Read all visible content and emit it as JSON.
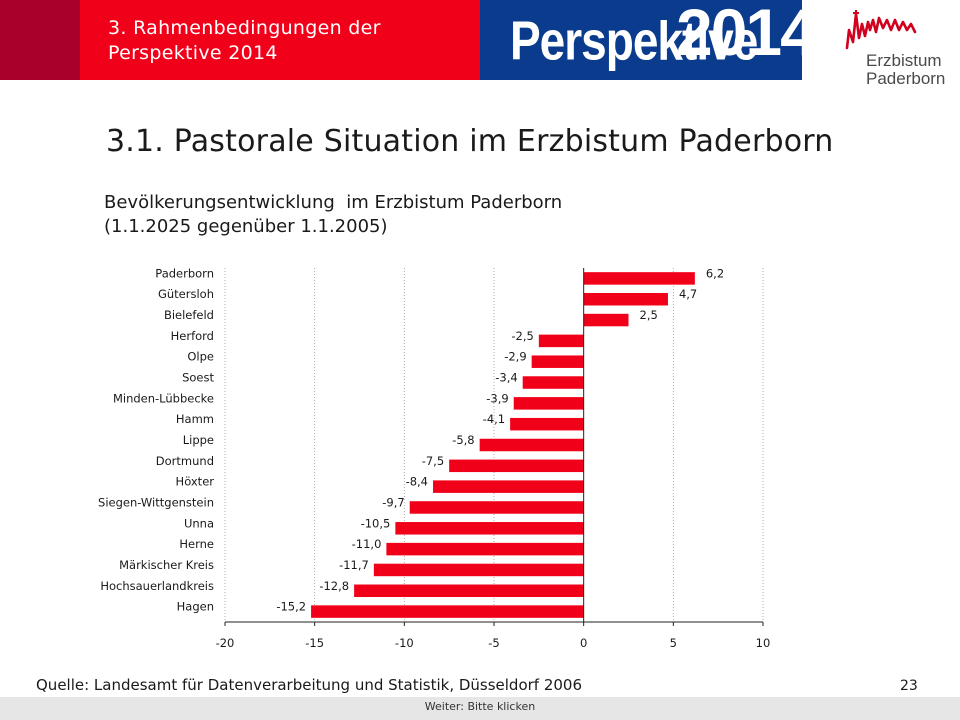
{
  "header": {
    "section_line1": "3. Rahmenbedingungen der",
    "section_line2": "Perspektive 2014",
    "logo_word": "Perspektive",
    "logo_year": "2014",
    "org_line1": "Erzbistum",
    "org_line2": "Paderborn"
  },
  "slide": {
    "title": "3.1. Pastorale Situation im Erzbistum Paderborn",
    "subtitle_line1": "Bevölkerungsentwicklung  im Erzbistum Paderborn",
    "subtitle_line2": "(1.1.2025 gegenüber 1.1.2005)",
    "source": "Quelle: Landesamt für Datenverarbeitung und Statistik, Düsseldorf 2006",
    "page_number": "23",
    "footer_hint": "Weiter: Bitte klicken"
  },
  "colors": {
    "header_dark": "#a8002a",
    "header_red": "#f10019",
    "header_blue": "#0a3b8c",
    "bar": "#f10019"
  },
  "icons": [
    "erzbistum-paderborn-logo-icon",
    "perspektive-2014-logo-icon"
  ],
  "chart_data": {
    "type": "bar",
    "orientation": "horizontal",
    "categories": [
      "Paderborn",
      "Gütersloh",
      "Bielefeld",
      "Herford",
      "Olpe",
      "Soest",
      "Minden-Lübbecke",
      "Hamm",
      "Lippe",
      "Dortmund",
      "Höxter",
      "Siegen-Wittgenstein",
      "Unna",
      "Herne",
      "Märkischer Kreis",
      "Hochsauerlandkreis",
      "Hagen"
    ],
    "values": [
      6.2,
      4.7,
      2.5,
      -2.5,
      -2.9,
      -3.4,
      -3.9,
      -4.1,
      -5.8,
      -7.5,
      -8.4,
      -9.7,
      -10.5,
      -11.0,
      -11.7,
      -12.8,
      -15.2
    ],
    "value_labels": [
      "6,2",
      "4,7",
      "2,5",
      "-2,5",
      "-2,9",
      "-3,4",
      "-3,9",
      "-4,1",
      "-5,8",
      "-7,5",
      "-8,4",
      "-9,7",
      "-10,5",
      "-11,0",
      "-11,7",
      "-12,8",
      "-15,2"
    ],
    "xlim": [
      -20,
      10
    ],
    "xticks": [
      -20,
      -15,
      -10,
      -5,
      0,
      5,
      10
    ],
    "grid": "vertical",
    "legend": "none"
  }
}
